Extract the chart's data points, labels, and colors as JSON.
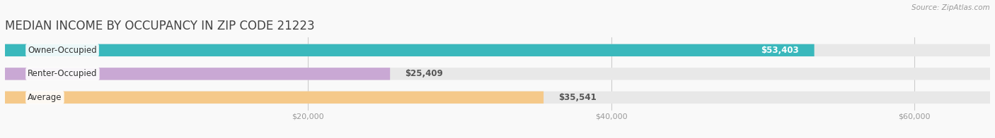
{
  "title": "MEDIAN INCOME BY OCCUPANCY IN ZIP CODE 21223",
  "source": "Source: ZipAtlas.com",
  "categories": [
    "Owner-Occupied",
    "Renter-Occupied",
    "Average"
  ],
  "values": [
    53403,
    25409,
    35541
  ],
  "bar_colors": [
    "#3ab8bc",
    "#c9a8d4",
    "#f5c98a"
  ],
  "bar_bg_color": "#e8e8e8",
  "label_colors": [
    "#ffffff",
    "#666666",
    "#666666"
  ],
  "value_labels": [
    "$53,403",
    "$25,409",
    "$35,541"
  ],
  "xlim": [
    0,
    65000
  ],
  "xticks": [
    20000,
    40000,
    60000
  ],
  "xtick_labels": [
    "$20,000",
    "$40,000",
    "$60,000"
  ],
  "background_color": "#f9f9f9",
  "title_fontsize": 12,
  "bar_height": 0.52,
  "figsize": [
    14.06,
    1.96
  ],
  "dpi": 100
}
